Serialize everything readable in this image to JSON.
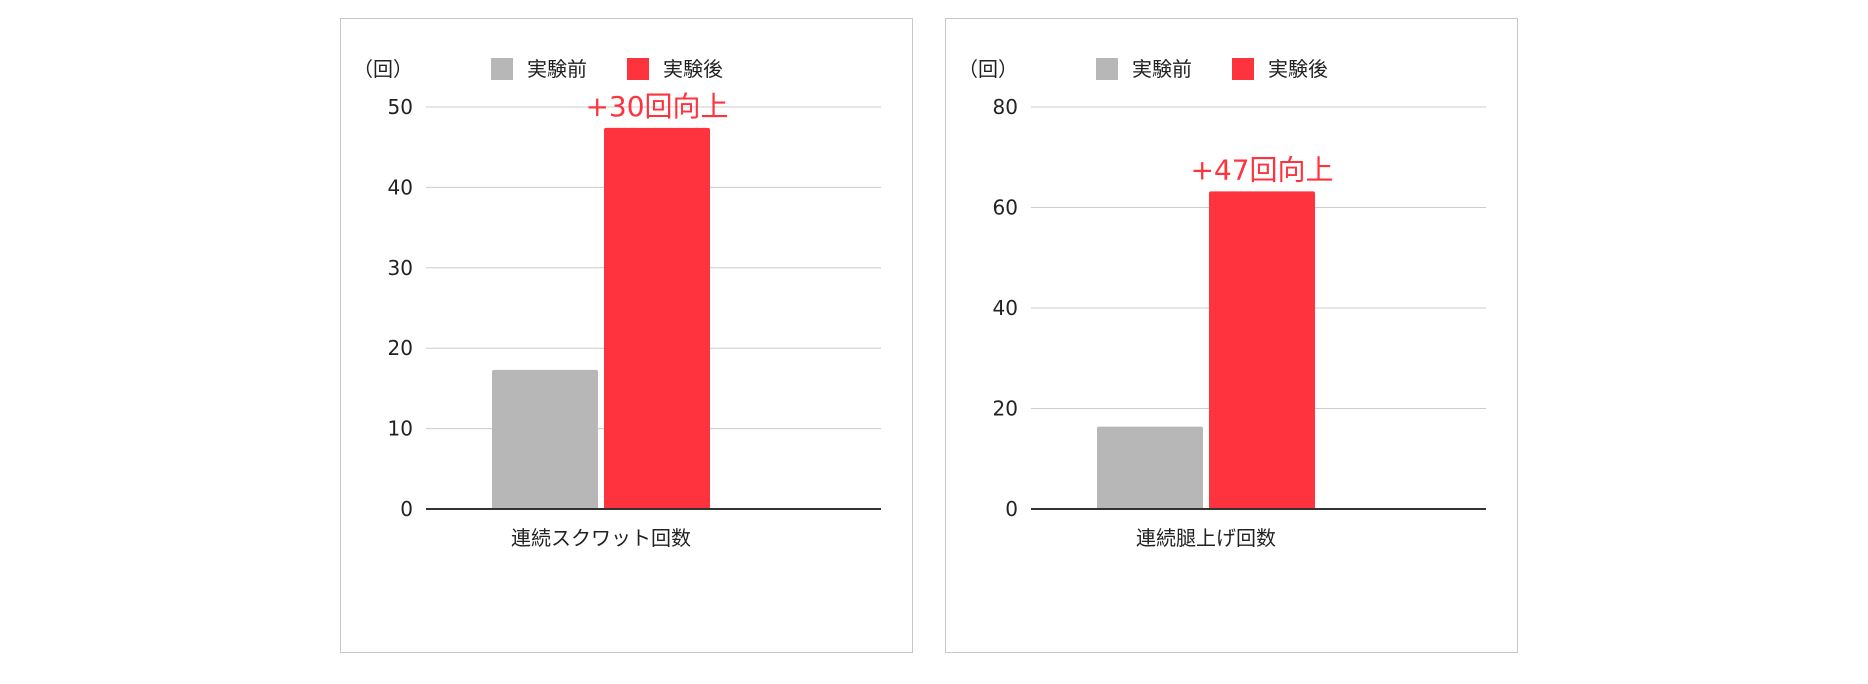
{
  "chart_data": [
    {
      "type": "bar",
      "unit_label": "（回）",
      "categories": [
        "連続スクワット回数"
      ],
      "series": [
        {
          "name": "実験前",
          "values": [
            17.3
          ],
          "color": "#b7b7b7"
        },
        {
          "name": "実験後",
          "values": [
            47.4
          ],
          "color": "#ff333d"
        }
      ],
      "ylim": [
        0,
        50
      ],
      "yticks": [
        "0",
        "10",
        "20",
        "30",
        "40",
        "50"
      ],
      "annotation": "+30回向上",
      "annotation_color": "#ff333d",
      "grid": true,
      "legend_position": "top"
    },
    {
      "type": "bar",
      "unit_label": "（回）",
      "categories": [
        "連続腿上げ回数"
      ],
      "series": [
        {
          "name": "実験前",
          "values": [
            16.4
          ],
          "color": "#b7b7b7"
        },
        {
          "name": "実験後",
          "values": [
            63.2
          ],
          "color": "#ff333d"
        }
      ],
      "ylim": [
        0,
        80
      ],
      "yticks": [
        "0",
        "20",
        "40",
        "60",
        "80"
      ],
      "annotation": "+47回向上",
      "annotation_color": "#ff333d",
      "grid": true,
      "legend_position": "top"
    }
  ]
}
